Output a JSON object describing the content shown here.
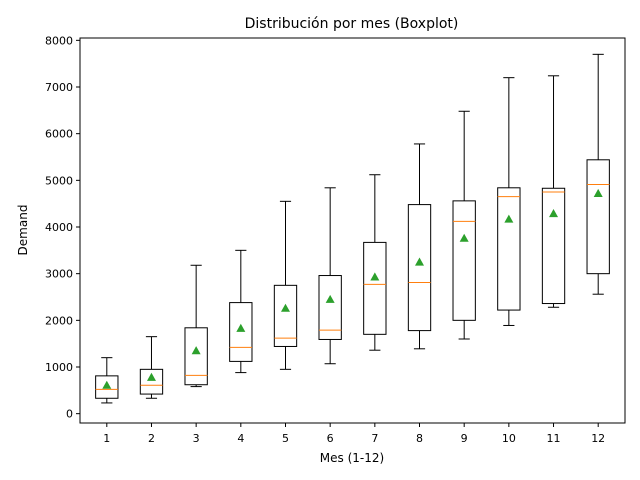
{
  "chart_data": {
    "type": "boxplot",
    "title": "Distribución por mes (Boxplot)",
    "xlabel": "Mes (1-12)",
    "ylabel": "Demand",
    "ylim": [
      -200,
      8050
    ],
    "yticks": [
      0,
      1000,
      2000,
      3000,
      4000,
      5000,
      6000,
      7000,
      8000
    ],
    "categories": [
      "1",
      "2",
      "3",
      "4",
      "5",
      "6",
      "7",
      "8",
      "9",
      "10",
      "11",
      "12"
    ],
    "grid": false,
    "colors": {
      "box": "#000000",
      "median": "#ff7f0e",
      "mean": "#2ca02c"
    },
    "boxes": [
      {
        "month": 1,
        "whisker_low": 230,
        "q1": 330,
        "median": 520,
        "q3": 810,
        "whisker_high": 1200,
        "mean": 610
      },
      {
        "month": 2,
        "whisker_low": 330,
        "q1": 420,
        "median": 610,
        "q3": 950,
        "whisker_high": 1650,
        "mean": 780
      },
      {
        "month": 3,
        "whisker_low": 580,
        "q1": 620,
        "median": 820,
        "q3": 1840,
        "whisker_high": 3180,
        "mean": 1350
      },
      {
        "month": 4,
        "whisker_low": 880,
        "q1": 1120,
        "median": 1420,
        "q3": 2380,
        "whisker_high": 3500,
        "mean": 1830
      },
      {
        "month": 5,
        "whisker_low": 950,
        "q1": 1440,
        "median": 1620,
        "q3": 2750,
        "whisker_high": 4550,
        "mean": 2260
      },
      {
        "month": 6,
        "whisker_low": 1070,
        "q1": 1590,
        "median": 1790,
        "q3": 2960,
        "whisker_high": 4840,
        "mean": 2450
      },
      {
        "month": 7,
        "whisker_low": 1360,
        "q1": 1700,
        "median": 2770,
        "q3": 3670,
        "whisker_high": 5120,
        "mean": 2930
      },
      {
        "month": 8,
        "whisker_low": 1390,
        "q1": 1780,
        "median": 2810,
        "q3": 4480,
        "whisker_high": 5780,
        "mean": 3250
      },
      {
        "month": 9,
        "whisker_low": 1600,
        "q1": 2000,
        "median": 4120,
        "q3": 4560,
        "whisker_high": 6480,
        "mean": 3760
      },
      {
        "month": 10,
        "whisker_low": 1890,
        "q1": 2220,
        "median": 4650,
        "q3": 4840,
        "whisker_high": 7200,
        "mean": 4170
      },
      {
        "month": 11,
        "whisker_low": 2280,
        "q1": 2360,
        "median": 4750,
        "q3": 4830,
        "whisker_high": 7240,
        "mean": 4290
      },
      {
        "month": 12,
        "whisker_low": 2560,
        "q1": 3000,
        "median": 4910,
        "q3": 5440,
        "whisker_high": 7700,
        "mean": 4720
      }
    ]
  }
}
